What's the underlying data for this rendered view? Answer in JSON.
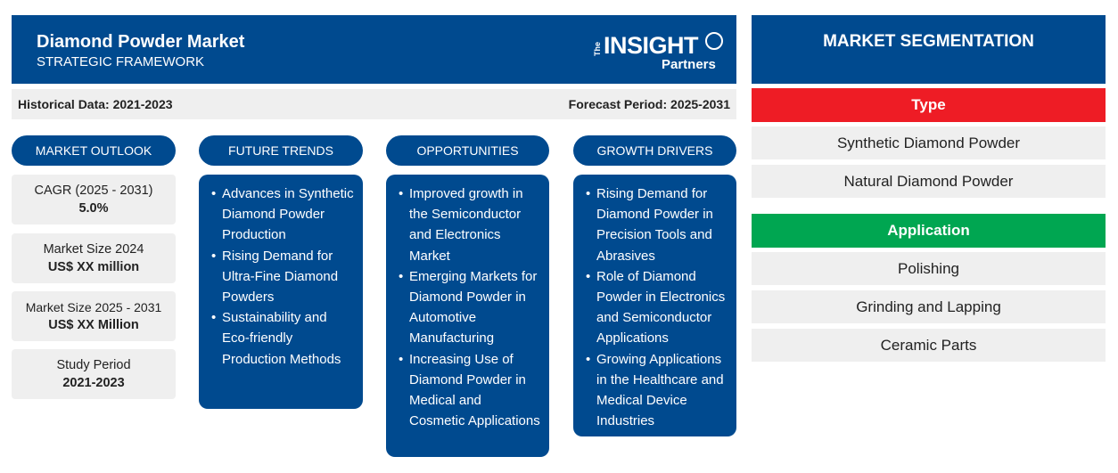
{
  "header": {
    "title": "Diamond Powder Market",
    "subtitle": "STRATEGIC FRAMEWORK",
    "logo": {
      "the": "The",
      "insight": "INSIGHT",
      "partners": "Partners"
    }
  },
  "periods": {
    "historical": "Historical Data: 2021-2023",
    "forecast": "Forecast Period: 2025-2031"
  },
  "columns": {
    "market_outlook": "MARKET OUTLOOK",
    "future_trends": "FUTURE TRENDS",
    "opportunities": "OPPORTUNITIES",
    "growth_drivers": "GROWTH DRIVERS"
  },
  "stats": [
    {
      "label": "CAGR (2025 - 2031)",
      "value": "5.0%"
    },
    {
      "label": "Market Size 2024",
      "value": "US$ XX million"
    },
    {
      "label": "Market Size 2025 - 2031",
      "value": "US$ XX Million"
    },
    {
      "label": "Study Period",
      "value": "2021-2023"
    }
  ],
  "future_trends": [
    "Advances in Synthetic Diamond Powder Production",
    "Rising Demand for Ultra-Fine Diamond Powders",
    "Sustainability and Eco-friendly Production Methods"
  ],
  "opportunities": [
    "Improved growth in the Semiconductor and Electronics Market",
    "Emerging Markets for Diamond Powder in Automotive Manufacturing",
    "Increasing Use of Diamond Powder in Medical and Cosmetic Applications"
  ],
  "growth_drivers": [
    "Rising Demand for Diamond Powder in Precision Tools and Abrasives",
    "Role of Diamond Powder in Electronics and Semiconductor Applications",
    "Growing Applications in the Healthcare and Medical Device Industries"
  ],
  "segmentation": {
    "title": "MARKET SEGMENTATION",
    "type": {
      "label": "Type",
      "color": "#ee1c25",
      "items": [
        "Synthetic Diamond Powder",
        "Natural Diamond Powder"
      ]
    },
    "application": {
      "label": "Application",
      "color": "#00a651",
      "items": [
        "Polishing",
        "Grinding and Lapping",
        "Ceramic Parts"
      ]
    }
  },
  "colors": {
    "primary": "#004a8f",
    "panel": "#efefef"
  }
}
